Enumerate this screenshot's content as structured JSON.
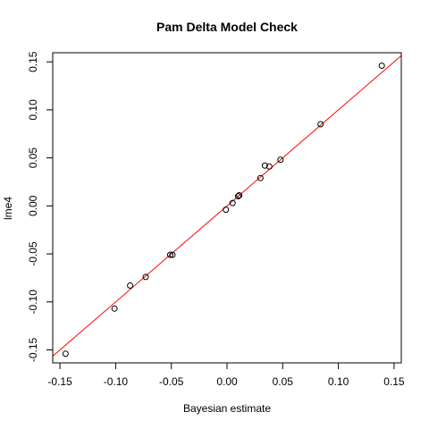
{
  "chart_data": {
    "type": "scatter",
    "title": "Pam Delta Model Check",
    "xlabel": "Bayesian estimate",
    "ylabel": "lme4",
    "xlim": [
      -0.1565,
      0.1565
    ],
    "ylim": [
      -0.1635,
      0.1595
    ],
    "x_ticks": [
      -0.15,
      -0.1,
      -0.05,
      0.0,
      0.05,
      0.1,
      0.15
    ],
    "x_tick_labels": [
      "-0.15",
      "-0.10",
      "-0.05",
      "0.00",
      "0.05",
      "0.10",
      "0.15"
    ],
    "y_ticks": [
      -0.15,
      -0.1,
      -0.05,
      0.0,
      0.05,
      0.1,
      0.15
    ],
    "y_tick_labels": [
      "-0.15",
      "-0.10",
      "-0.05",
      "0.00",
      "0.05",
      "0.10",
      "0.15"
    ],
    "reference_line": {
      "intercept": 0,
      "slope": 1,
      "color": "#ff0000"
    },
    "point_color": "#000000",
    "points": [
      {
        "x": -0.145,
        "y": -0.154
      },
      {
        "x": -0.101,
        "y": -0.107
      },
      {
        "x": -0.087,
        "y": -0.083
      },
      {
        "x": -0.073,
        "y": -0.074
      },
      {
        "x": -0.051,
        "y": -0.051
      },
      {
        "x": -0.049,
        "y": -0.051
      },
      {
        "x": -0.001,
        "y": -0.004
      },
      {
        "x": 0.005,
        "y": 0.003
      },
      {
        "x": 0.01,
        "y": 0.01
      },
      {
        "x": 0.011,
        "y": 0.011
      },
      {
        "x": 0.03,
        "y": 0.029
      },
      {
        "x": 0.034,
        "y": 0.042
      },
      {
        "x": 0.038,
        "y": 0.041
      },
      {
        "x": 0.048,
        "y": 0.048
      },
      {
        "x": 0.084,
        "y": 0.085
      },
      {
        "x": 0.139,
        "y": 0.146
      }
    ]
  }
}
